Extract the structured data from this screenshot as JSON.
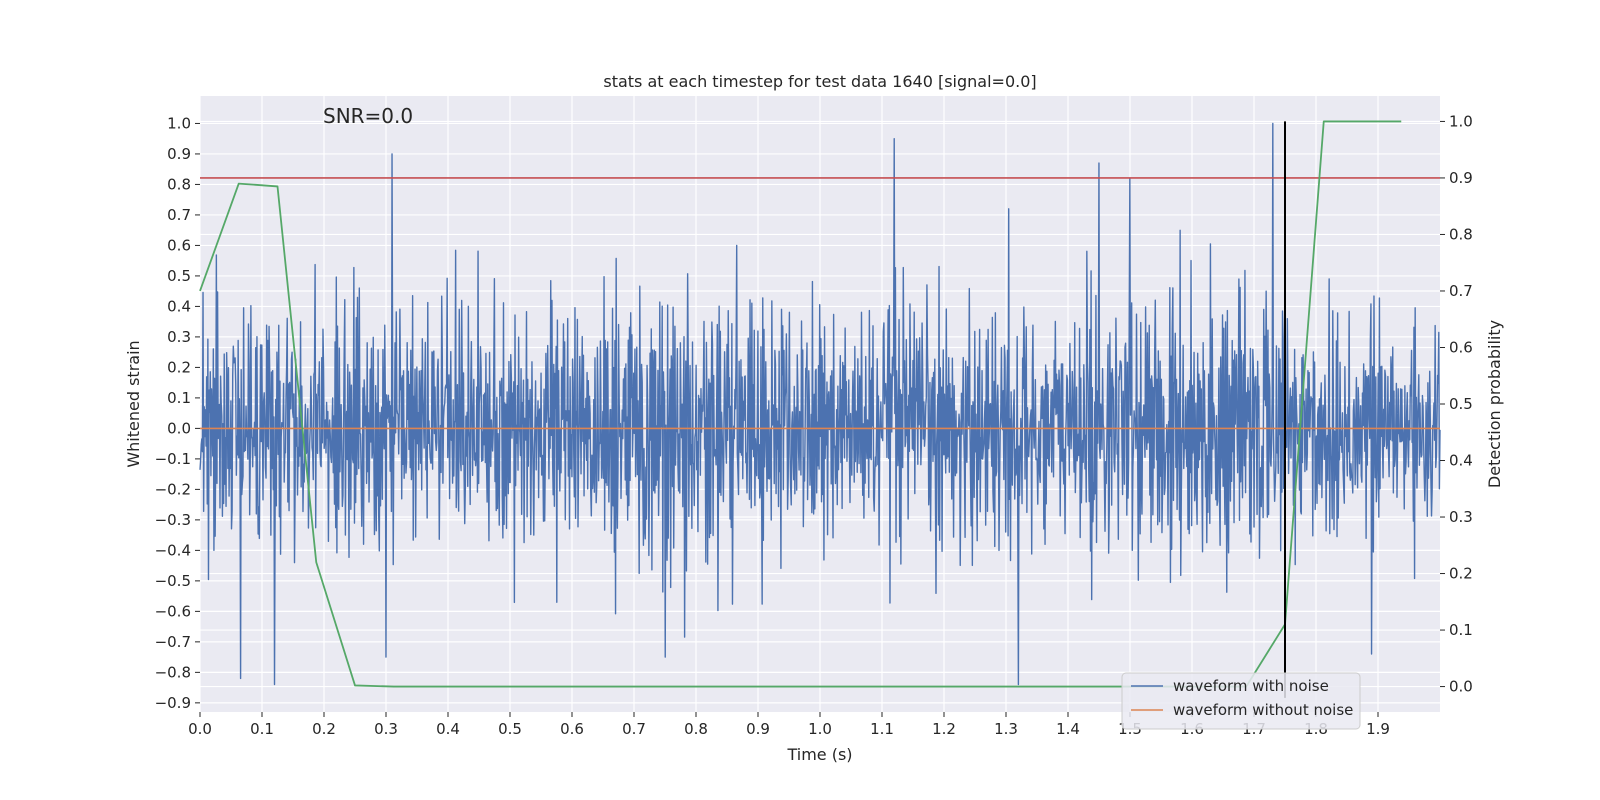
{
  "chart_data": {
    "type": "line",
    "title": "stats at each timestep for test data 1640 [signal=0.0]",
    "xlabel": "Time (s)",
    "ylabel": "Whitened strain",
    "y2label": "Detection probability",
    "annotation": "SNR=0.0",
    "xlim": [
      0.0,
      2.0
    ],
    "ylim": [
      -0.93,
      1.09
    ],
    "y2lim": [
      -0.045,
      1.045
    ],
    "xticks": [
      0.0,
      0.1,
      0.2,
      0.3,
      0.4,
      0.5,
      0.6,
      0.7,
      0.8,
      0.9,
      1.0,
      1.1,
      1.2,
      1.3,
      1.4,
      1.5,
      1.6,
      1.7,
      1.8,
      1.9
    ],
    "xtick_labels": [
      "0.0",
      "0.1",
      "0.2",
      "0.3",
      "0.4",
      "0.5",
      "0.6",
      "0.7",
      "0.8",
      "0.9",
      "1.0",
      "1.1",
      "1.2",
      "1.3",
      "1.4",
      "1.5",
      "1.6",
      "1.7",
      "1.8",
      "1.9"
    ],
    "yticks": [
      -0.9,
      -0.8,
      -0.7,
      -0.6,
      -0.5,
      -0.4,
      -0.3,
      -0.2,
      -0.1,
      0.0,
      0.1,
      0.2,
      0.3,
      0.4,
      0.5,
      0.6,
      0.7,
      0.8,
      0.9,
      1.0
    ],
    "ytick_labels": [
      "−0.9",
      "−0.8",
      "−0.7",
      "−0.6",
      "−0.5",
      "−0.4",
      "−0.3",
      "−0.2",
      "−0.1",
      "0.0",
      "0.1",
      "0.2",
      "0.3",
      "0.4",
      "0.5",
      "0.6",
      "0.7",
      "0.8",
      "0.9",
      "1.0"
    ],
    "y2ticks": [
      0.0,
      0.1,
      0.2,
      0.3,
      0.4,
      0.5,
      0.6,
      0.7,
      0.8,
      0.9,
      1.0
    ],
    "y2tick_labels": [
      "0.0",
      "0.1",
      "0.2",
      "0.3",
      "0.4",
      "0.5",
      "0.6",
      "0.7",
      "0.8",
      "0.9",
      "1.0"
    ],
    "grid": true,
    "legend_position": "bottom-right",
    "series": [
      {
        "name": "waveform with noise",
        "color": "#4c72b0",
        "axis": "left",
        "render": "noise",
        "x_range": [
          0.0,
          2.0
        ],
        "notable_peaks": [
          {
            "x": 0.31,
            "y": 0.9
          },
          {
            "x": 1.12,
            "y": 0.95
          },
          {
            "x": 1.45,
            "y": 0.87
          },
          {
            "x": 1.5,
            "y": 0.82
          },
          {
            "x": 1.73,
            "y": 1.0
          },
          {
            "x": 0.12,
            "y": -0.84
          },
          {
            "x": 0.065,
            "y": -0.82
          },
          {
            "x": 1.32,
            "y": -0.84
          },
          {
            "x": 1.89,
            "y": -0.74
          },
          {
            "x": 0.3,
            "y": -0.75
          },
          {
            "x": 0.75,
            "y": -0.75
          }
        ]
      },
      {
        "name": "waveform without noise",
        "color": "#dd8452",
        "axis": "left",
        "x": [
          0.0,
          2.0
        ],
        "y": [
          0.0,
          0.0
        ]
      },
      {
        "color": "#55a868",
        "axis": "right",
        "x": [
          0.0,
          0.0625,
          0.125,
          0.1875,
          0.25,
          0.3125,
          1.6875,
          1.75,
          1.8125,
          1.875,
          1.9375
        ],
        "y": [
          0.7,
          0.89,
          0.885,
          0.22,
          0.002,
          0.0,
          0.0,
          0.11,
          1.0,
          1.0,
          1.0
        ]
      }
    ],
    "hlines": [
      {
        "y2": 0.9,
        "color": "#c44e52"
      }
    ],
    "vlines": [
      {
        "x": 1.75,
        "y2_from": -0.02,
        "y2_to": 1.0,
        "color": "#000000"
      }
    ],
    "colors": {
      "background": "#eaeaf2",
      "grid": "#ffffff",
      "text": "#262626"
    }
  }
}
